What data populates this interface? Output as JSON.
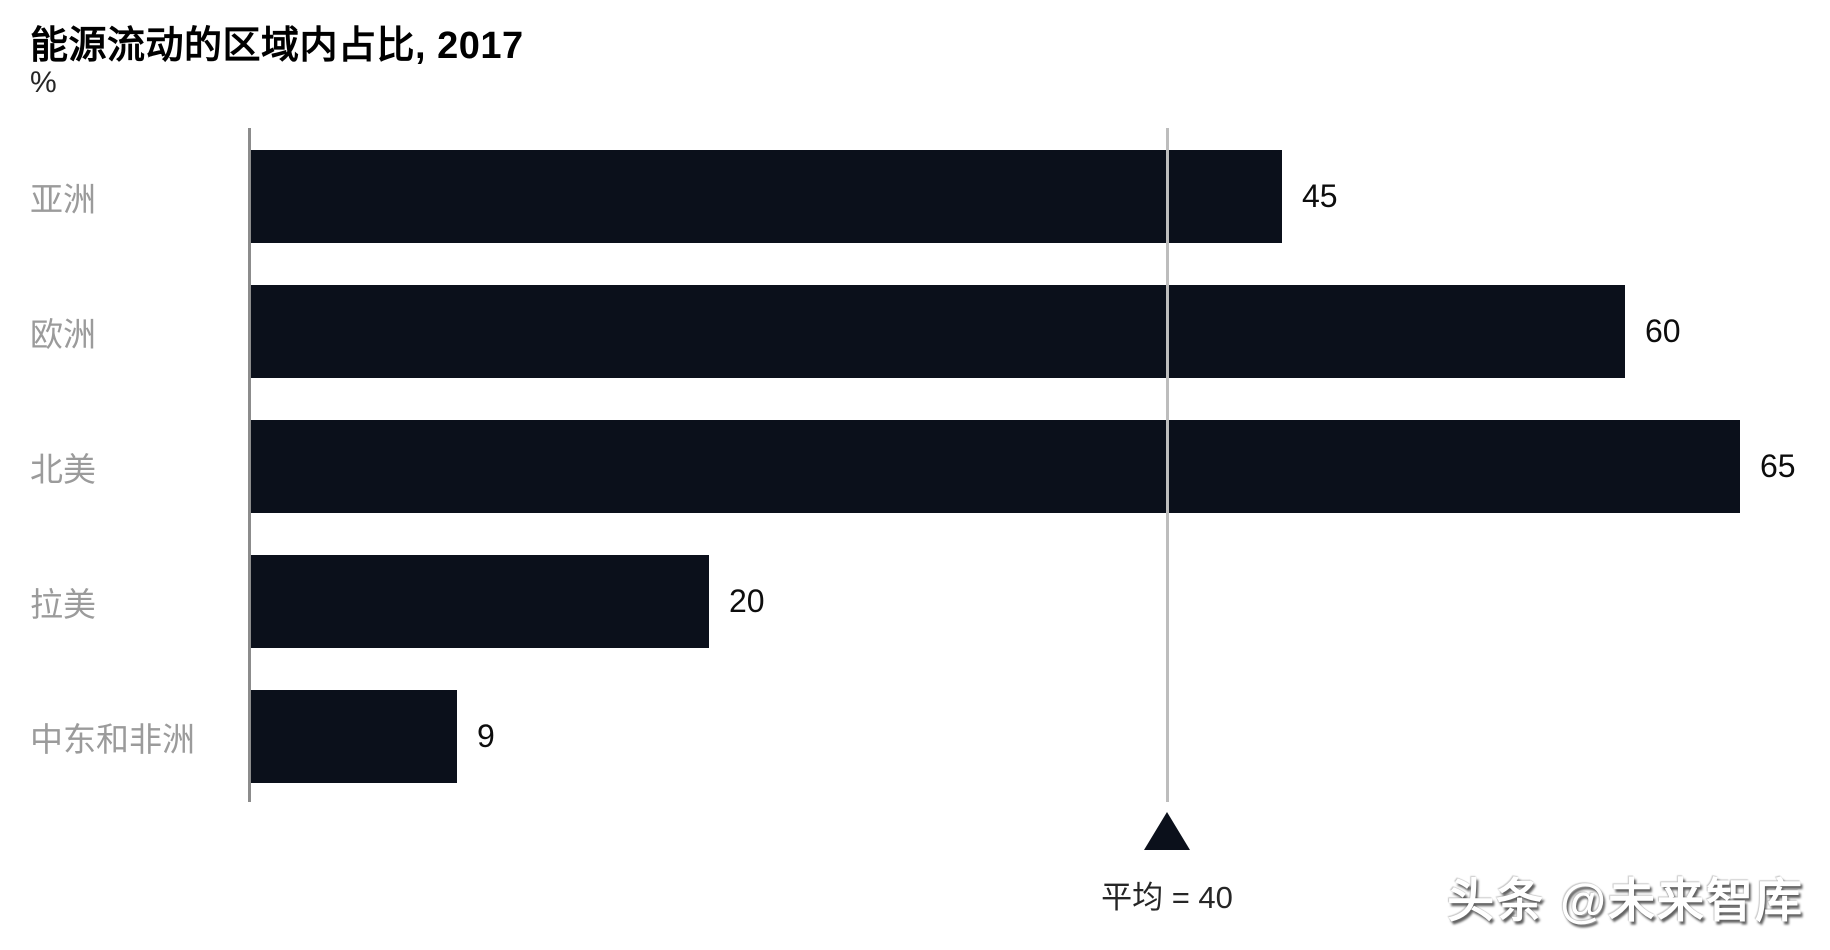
{
  "header": {
    "title": "能源流动的区域内占比, 2017",
    "unit": "%"
  },
  "chart_data": {
    "type": "bar",
    "orientation": "horizontal",
    "title": "能源流动的区域内占比, 2017",
    "xlabel": "",
    "ylabel": "%",
    "categories": [
      "亚洲",
      "欧洲",
      "北美",
      "拉美",
      "中东和非洲"
    ],
    "values": [
      45,
      60,
      65,
      20,
      9
    ],
    "xlim": [
      0,
      69
    ],
    "grid": false,
    "legend": null,
    "reference_line": {
      "value": 40,
      "label": "平均 = 40"
    },
    "colors": {
      "bar": "#0b101b",
      "category_label": "#9b9b9b",
      "value_label": "#0d0d0d",
      "axis_line": "#8c8c8c",
      "reference_line": "#bdbdbd",
      "marker": "#0b101b"
    }
  },
  "watermark": {
    "text": "头条 @未来智库"
  }
}
